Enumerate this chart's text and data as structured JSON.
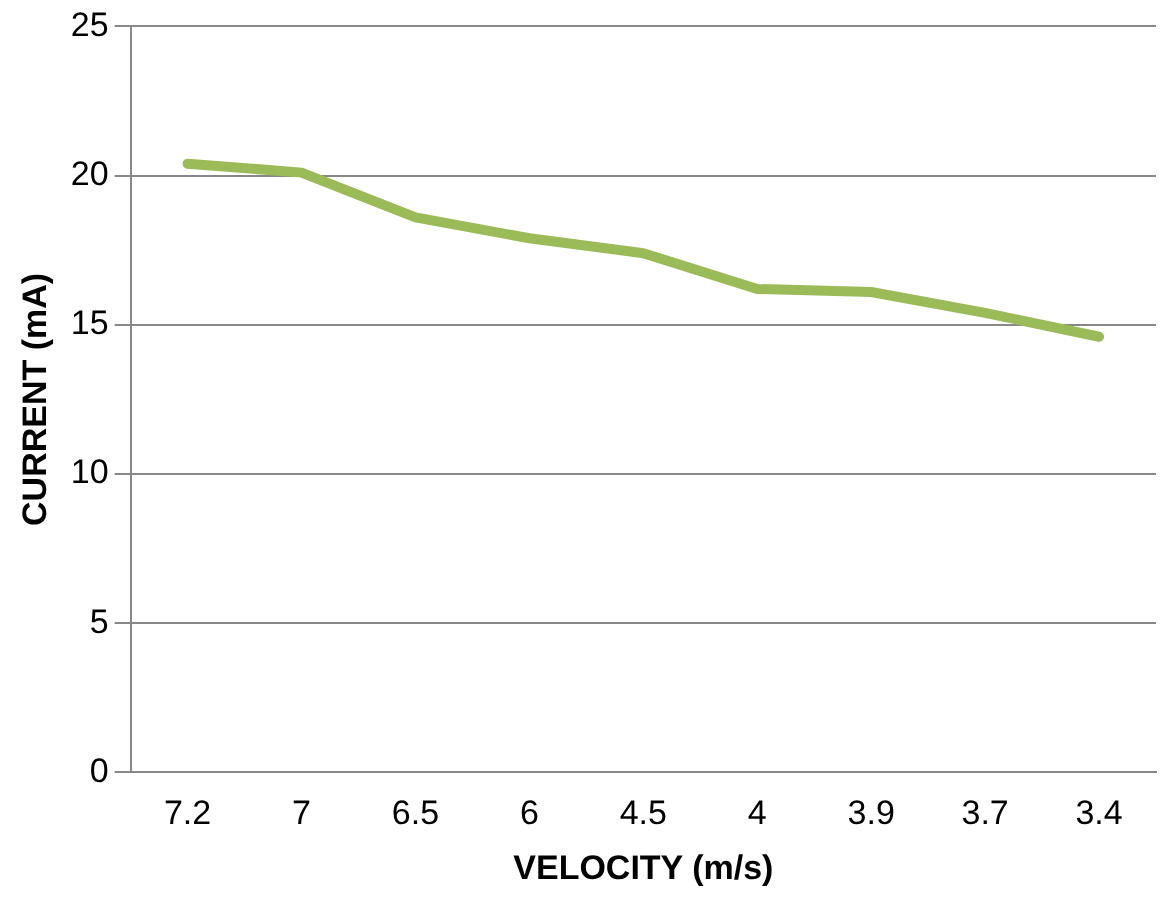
{
  "chart_data": {
    "type": "line",
    "xlabel": "VELOCITY (m/s)",
    "ylabel": "CURRENT (mA)",
    "categories": [
      "7.2",
      "7",
      "6.5",
      "6",
      "4.5",
      "4",
      "3.9",
      "3.7",
      "3.4"
    ],
    "series": [
      {
        "color": "#9bbb59",
        "values": [
          20.4,
          20.1,
          18.6,
          17.9,
          17.4,
          16.2,
          16.1,
          15.4,
          14.6
        ]
      }
    ],
    "ylim": [
      0,
      25
    ],
    "yticks": [
      0,
      5,
      10,
      15,
      20,
      25
    ],
    "grid": "y",
    "legend": false,
    "marker": "none",
    "line_style": "solid"
  }
}
